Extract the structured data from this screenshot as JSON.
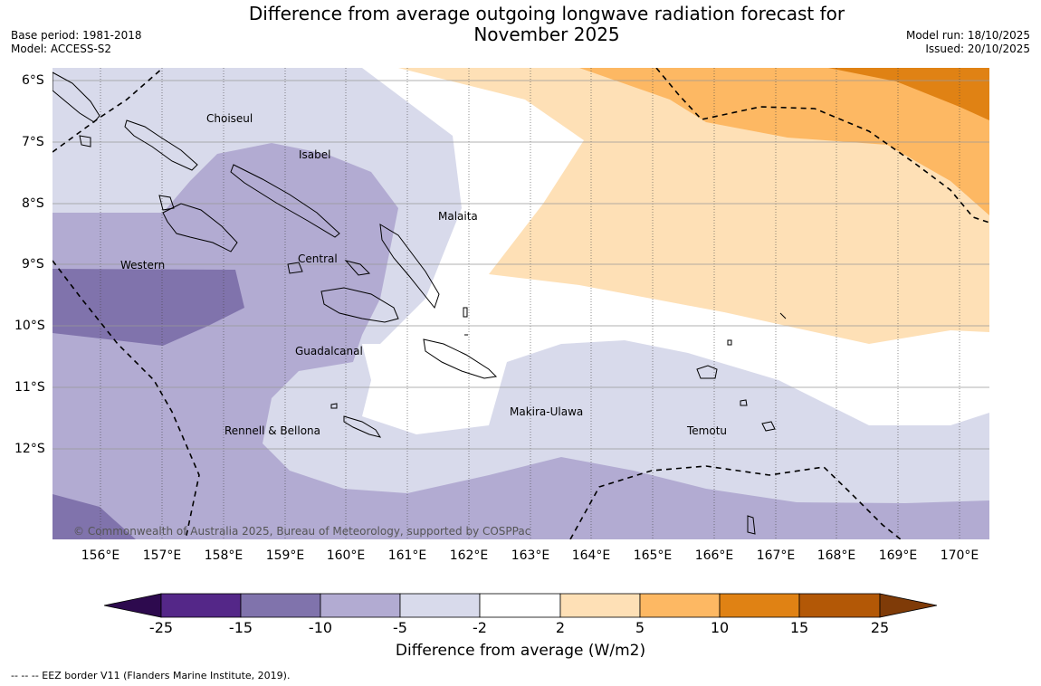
{
  "header": {
    "title_line1": "Difference from average outgoing longwave radiation forecast for",
    "title_line2": "November 2025",
    "base_period": "Base period: 1981-2018",
    "model": "Model: ACCESS-S2",
    "model_run": "Model run: 18/10/2025",
    "issued": "Issued: 20/10/2025"
  },
  "map": {
    "longitude_labels": [
      "156°E",
      "157°E",
      "158°E",
      "159°E",
      "160°E",
      "161°E",
      "162°E",
      "163°E",
      "164°E",
      "165°E",
      "166°E",
      "167°E",
      "168°E",
      "169°E",
      "170°E"
    ],
    "latitude_labels": [
      "6°S",
      "7°S",
      "8°S",
      "9°S",
      "10°S",
      "11°S",
      "12°S"
    ],
    "regions": [
      "Choiseul",
      "Isabel",
      "Malaita",
      "Western",
      "Central",
      "Guadalcanal",
      "Makira-Ulawa",
      "Rennell & Bellona",
      "Temotu"
    ],
    "copyright": "© Commonwealth of Australia 2025, Bureau of Meteorology, supported by COSPPac"
  },
  "colorbar": {
    "title": "Difference from average (W/m2)",
    "ticks": [
      "-25",
      "-15",
      "-10",
      "-5",
      "-2",
      "2",
      "5",
      "10",
      "15",
      "25"
    ],
    "colors": [
      "#2d0a4e",
      "#542788",
      "#8073ac",
      "#b2abd2",
      "#d8daeb",
      "#ffffff",
      "#fee0b6",
      "#fdb863",
      "#e08214",
      "#b35806",
      "#7f3b08"
    ]
  },
  "legend_note": "--  --  -- EEZ border V11 (Flanders Marine Institute, 2019)."
}
